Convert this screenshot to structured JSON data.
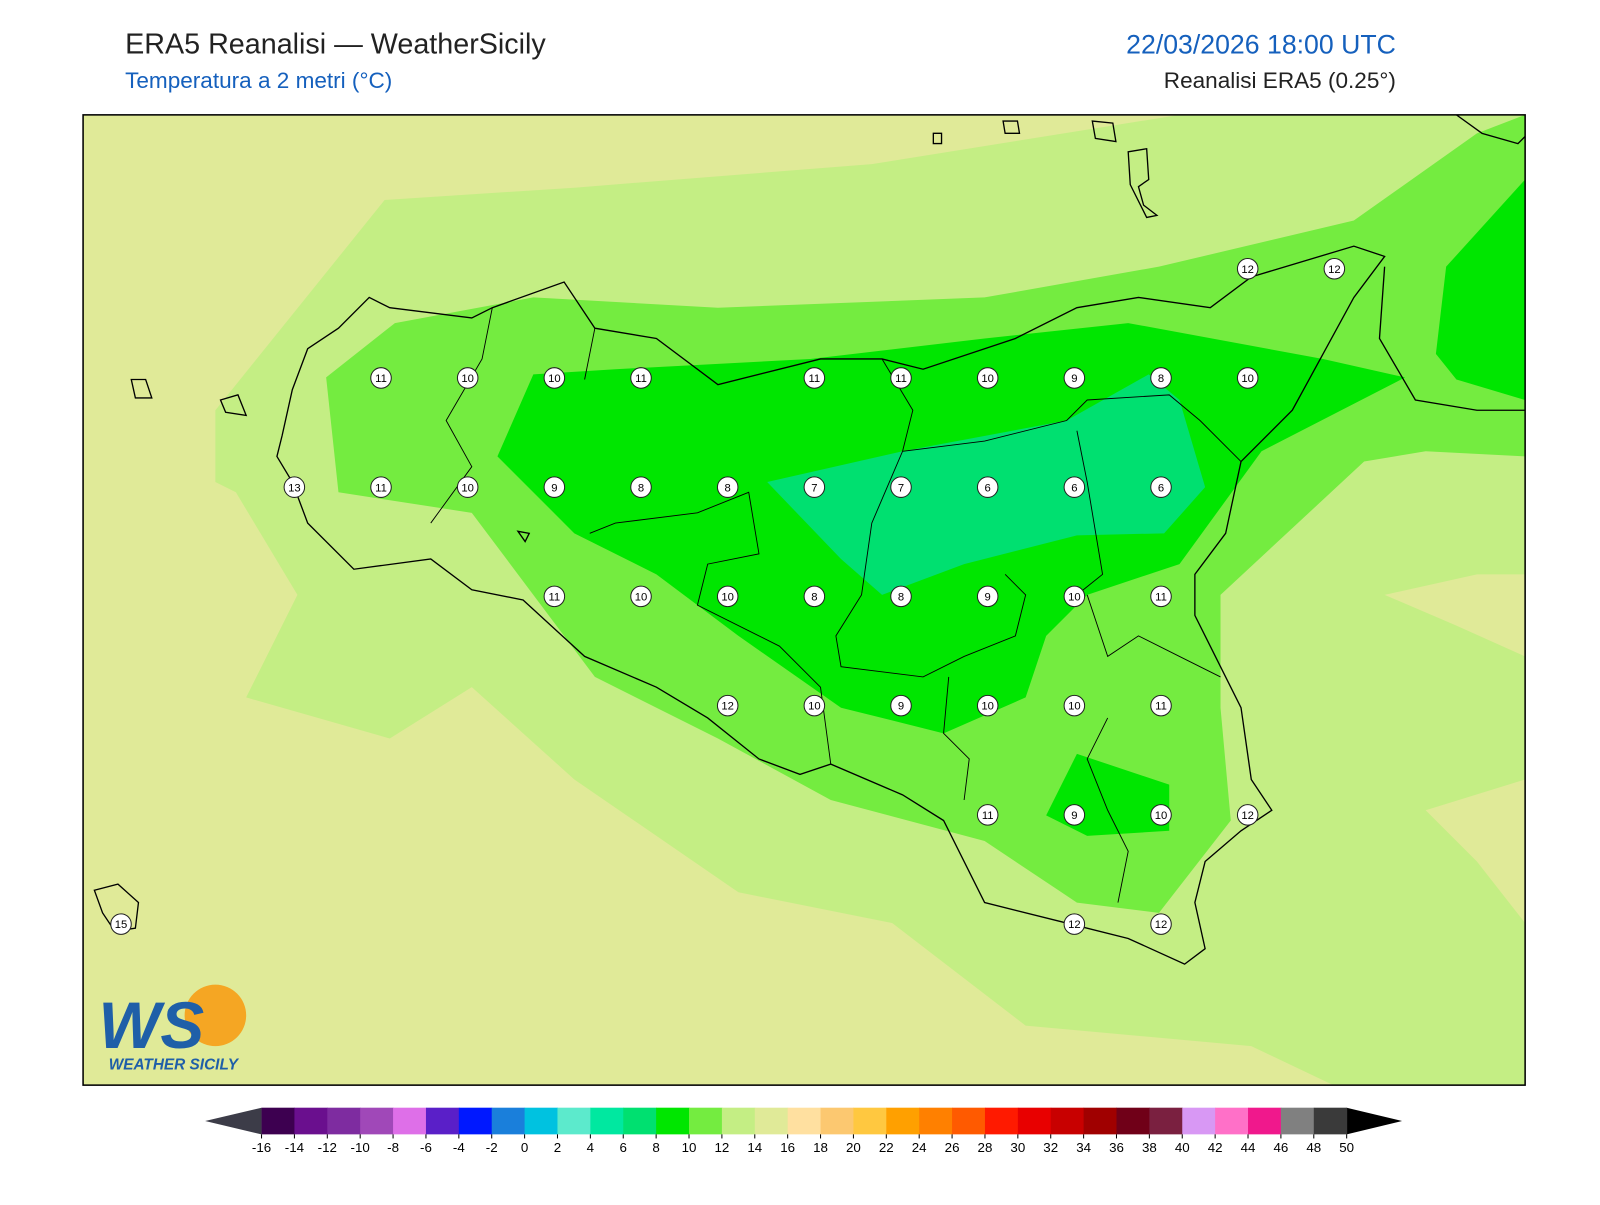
{
  "header": {
    "title": "ERA5 Reanalisi — WeatherSicily",
    "subtitle": "Temperatura a 2 metri (°C)",
    "datetime": "22/03/2026 18:00 UTC",
    "source": "Reanalisi ERA5 (0.25°)"
  },
  "map": {
    "stations": [
      [
        null,
        null,
        null,
        null,
        null,
        null,
        null,
        null,
        null,
        null,
        null,
        null,
        null,
        12,
        12
      ],
      [
        null,
        null,
        null,
        11,
        10,
        10,
        11,
        null,
        11,
        11,
        10,
        9,
        8,
        10,
        null
      ],
      [
        null,
        null,
        13,
        11,
        10,
        9,
        8,
        8,
        7,
        7,
        6,
        6,
        6,
        null,
        null
      ],
      [
        null,
        null,
        null,
        null,
        null,
        11,
        10,
        10,
        8,
        8,
        9,
        10,
        11,
        null,
        null
      ],
      [
        null,
        null,
        null,
        null,
        null,
        null,
        null,
        12,
        10,
        9,
        10,
        10,
        11,
        null,
        null
      ],
      [
        null,
        null,
        null,
        null,
        null,
        null,
        null,
        null,
        null,
        null,
        11,
        9,
        10,
        12,
        null
      ],
      [
        15,
        null,
        null,
        null,
        null,
        null,
        null,
        null,
        null,
        null,
        null,
        12,
        12,
        null,
        null
      ]
    ]
  },
  "colorbar": {
    "ticks": [
      -16,
      -14,
      -12,
      -10,
      -8,
      -6,
      -4,
      -2,
      0,
      2,
      4,
      6,
      8,
      10,
      12,
      14,
      16,
      18,
      20,
      22,
      24,
      26,
      28,
      30,
      32,
      34,
      36,
      38,
      40,
      42,
      44,
      46,
      48,
      50
    ],
    "colors": [
      "#3d0050",
      "#6a0f8e",
      "#7e2ca0",
      "#a048b8",
      "#de6fe8",
      "#5a1fc8",
      "#0018ff",
      "#1a7fdb",
      "#00c2e0",
      "#5ceacc",
      "#00e8a0",
      "#00e070",
      "#00e600",
      "#74ec40",
      "#c4ee84",
      "#e0ea98",
      "#ffe0a0",
      "#fcc870",
      "#ffc840",
      "#ffa000",
      "#ff8000",
      "#ff5a00",
      "#ff1a00",
      "#e80000",
      "#c80000",
      "#a00000",
      "#700018",
      "#7a2040",
      "#d898f4",
      "#ff70c8",
      "#f0188c",
      "#808080",
      "#3a3a3a"
    ],
    "under_color": "#3c3c48",
    "over_color": "#000000"
  },
  "logo": {
    "mark": "WS",
    "text": "WEATHER SICILY"
  }
}
